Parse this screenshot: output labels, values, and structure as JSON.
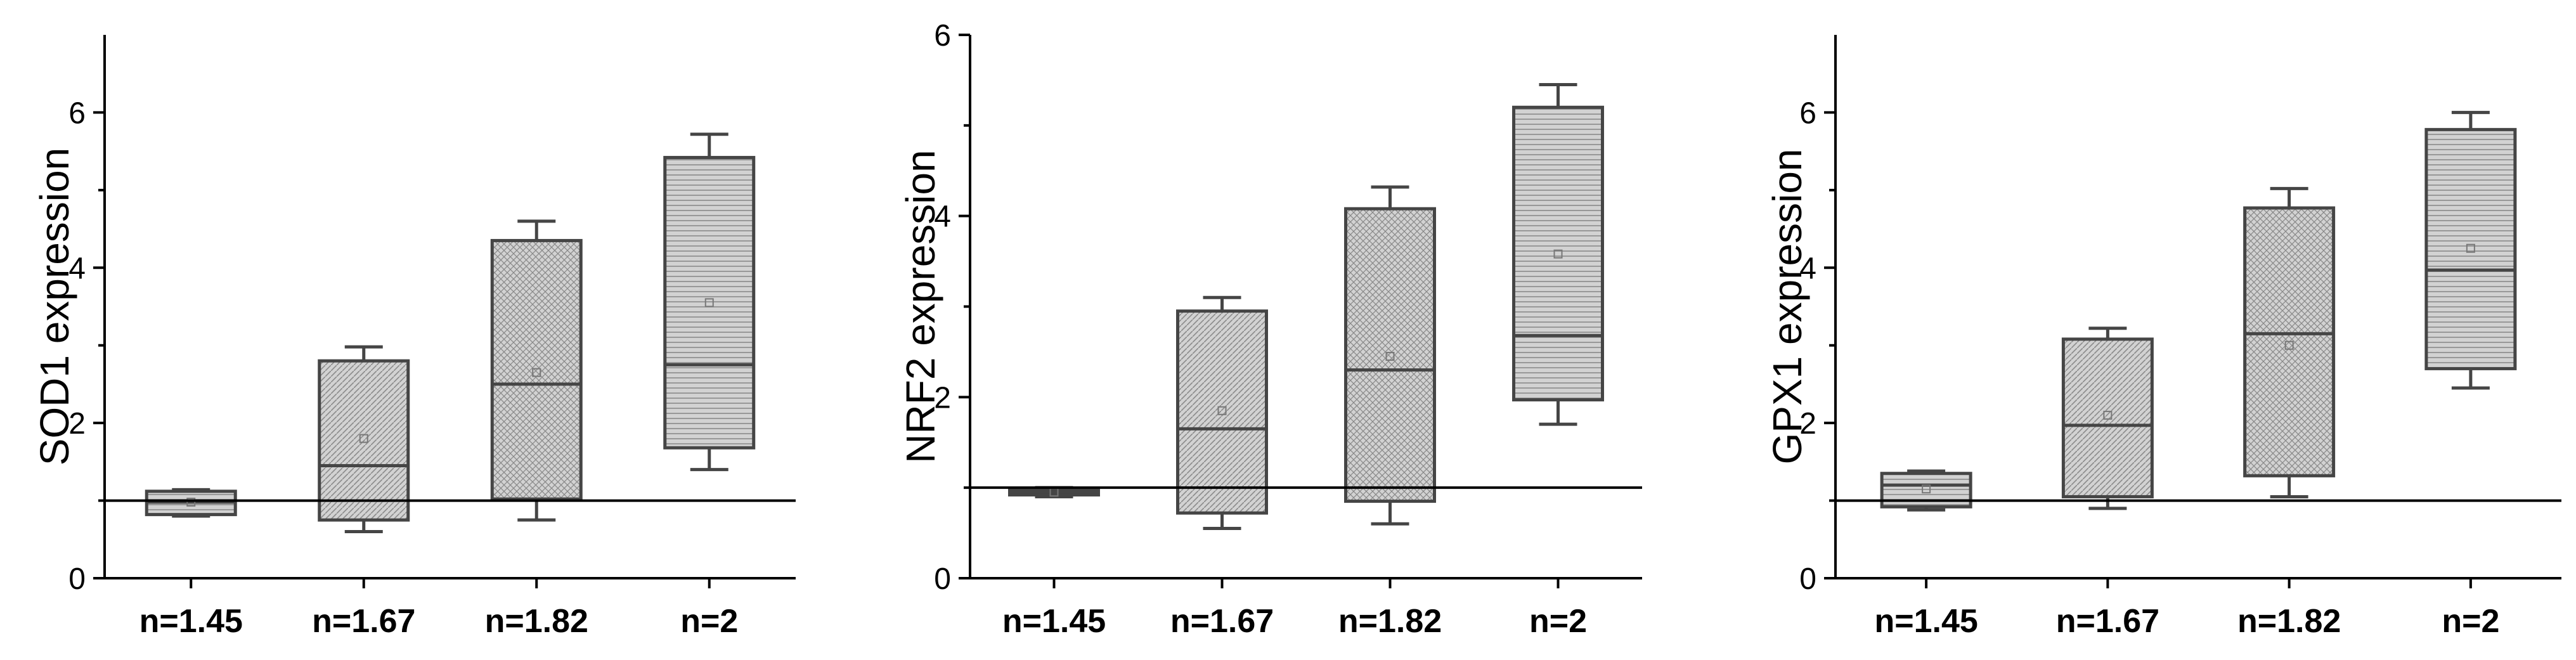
{
  "chart_data": [
    {
      "type": "box",
      "ylabel": "SOD1 expression",
      "ylim": [
        0,
        7
      ],
      "yticks": [
        0,
        2,
        4,
        6
      ],
      "reference_line": 1,
      "categories": [
        "n=1.45",
        "n=1.67",
        "n=1.82",
        "n=2"
      ],
      "boxes": [
        {
          "whisker_low": 0.8,
          "q1": 0.82,
          "median": 0.98,
          "q3": 1.12,
          "whisker_high": 1.14,
          "mean": 0.98
        },
        {
          "whisker_low": 0.6,
          "q1": 0.75,
          "median": 1.45,
          "q3": 2.8,
          "whisker_high": 2.98,
          "mean": 1.8
        },
        {
          "whisker_low": 0.75,
          "q1": 1.02,
          "median": 2.5,
          "q3": 4.35,
          "whisker_high": 4.6,
          "mean": 2.65
        },
        {
          "whisker_low": 1.4,
          "q1": 1.68,
          "median": 2.75,
          "q3": 5.42,
          "whisker_high": 5.72,
          "mean": 3.55
        }
      ]
    },
    {
      "type": "box",
      "ylabel": "NRF2 expression",
      "ylim": [
        0,
        6
      ],
      "yticks": [
        0,
        2,
        4,
        6
      ],
      "reference_line": 1,
      "categories": [
        "n=1.45",
        "n=1.67",
        "n=1.82",
        "n=2"
      ],
      "boxes": [
        {
          "whisker_low": 0.9,
          "q1": 0.92,
          "median": 0.95,
          "q3": 0.98,
          "whisker_high": 1.0,
          "mean": 0.95
        },
        {
          "whisker_low": 0.55,
          "q1": 0.72,
          "median": 1.65,
          "q3": 2.95,
          "whisker_high": 3.1,
          "mean": 1.85
        },
        {
          "whisker_low": 0.6,
          "q1": 0.85,
          "median": 2.3,
          "q3": 4.08,
          "whisker_high": 4.32,
          "mean": 2.45
        },
        {
          "whisker_low": 1.7,
          "q1": 1.97,
          "median": 2.68,
          "q3": 5.2,
          "whisker_high": 5.45,
          "mean": 3.58
        }
      ]
    },
    {
      "type": "box",
      "ylabel": "GPX1 expression",
      "ylim": [
        0,
        7
      ],
      "yticks": [
        0,
        2,
        4,
        6
      ],
      "reference_line": 1,
      "categories": [
        "n=1.45",
        "n=1.67",
        "n=1.82",
        "n=2"
      ],
      "boxes": [
        {
          "whisker_low": 0.88,
          "q1": 0.92,
          "median": 1.2,
          "q3": 1.35,
          "whisker_high": 1.38,
          "mean": 1.15
        },
        {
          "whisker_low": 0.9,
          "q1": 1.05,
          "median": 1.97,
          "q3": 3.08,
          "whisker_high": 3.22,
          "mean": 2.1
        },
        {
          "whisker_low": 1.05,
          "q1": 1.32,
          "median": 3.15,
          "q3": 4.77,
          "whisker_high": 5.02,
          "mean": 3.0
        },
        {
          "whisker_low": 2.45,
          "q1": 2.7,
          "median": 3.97,
          "q3": 5.78,
          "whisker_high": 6.0,
          "mean": 4.25
        }
      ]
    }
  ]
}
